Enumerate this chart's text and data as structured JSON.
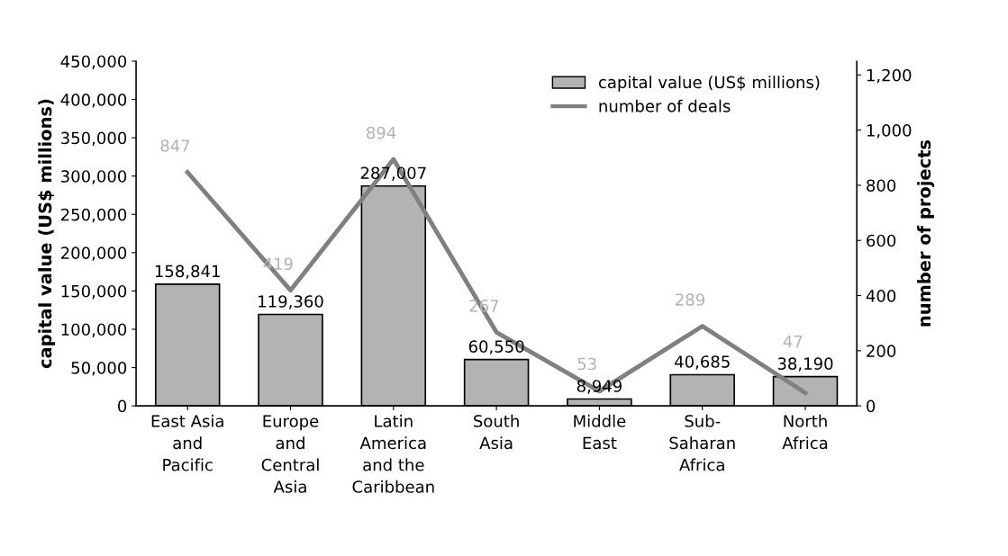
{
  "chart_data": {
    "type": "bar",
    "categories": [
      "East Asia\nand\nPacific",
      "Europe\nand\nCentral\nAsia",
      "Latin\nAmerica\nand the\nCaribbean",
      "South\nAsia",
      "Middle\nEast",
      "Sub-\nSaharan\nAfrica",
      "North\nAfrica"
    ],
    "ylabel": "capital value (US$ millions)",
    "y2label": "number of projects",
    "series": [
      {
        "name": "capital value (US$ millions)",
        "color": "#b3b3b3",
        "values": [
          158841,
          119360,
          287007,
          60550,
          8949,
          40685,
          38190
        ],
        "value_labels": [
          "158,841",
          "119,360",
          "287,007",
          "60,550",
          "8,949",
          "40,685",
          "38,190"
        ]
      },
      {
        "name": "number of deals",
        "type": "line",
        "axis": "y2",
        "color": "#808080",
        "values": [
          847,
          419,
          894,
          267,
          53,
          289,
          47
        ],
        "value_labels": [
          "847",
          "419",
          "894",
          "267",
          "53",
          "289",
          "47"
        ]
      }
    ],
    "ylim": [
      0,
      450000
    ],
    "yticks": [
      0,
      {
        "value": 50000,
        "label": "50,000"
      },
      {
        "value": 100000,
        "label": "100,000"
      },
      {
        "value": 150000,
        "label": "150,000"
      },
      {
        "value": 200000,
        "label": "200,000"
      },
      {
        "value": 250000,
        "label": "250,000"
      },
      {
        "value": 300000,
        "label": "300,000"
      },
      {
        "value": 350000,
        "label": "350,000"
      },
      {
        "value": 400000,
        "label": "400,000"
      },
      {
        "value": 450000,
        "label": "450,000"
      }
    ],
    "y2lim": [
      0,
      1250
    ],
    "y2ticks": [
      0,
      200,
      400,
      600,
      800,
      {
        "value": 1000,
        "label": "1,000"
      },
      {
        "value": 1200,
        "label": "1,200"
      }
    ],
    "legend": "top right",
    "grid": false,
    "marker": "none",
    "line_style": "solid"
  }
}
